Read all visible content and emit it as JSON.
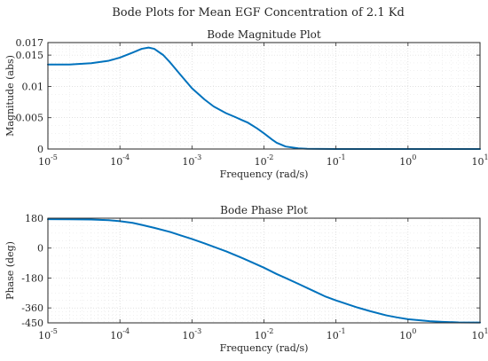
{
  "figure": {
    "suptitle": "Bode Plots for Mean EGF Concentration of 2.1 Kd"
  },
  "colors": {
    "line": "#0072bd",
    "text": "#262626"
  },
  "chart_data": [
    {
      "type": "line",
      "id": "magnitude",
      "title": "Bode Magnitude Plot",
      "xlabel": "Frequency (rad/s)",
      "ylabel": "Magnitude (abs)",
      "xscale": "log",
      "xlim": [
        1e-05,
        10
      ],
      "ylim": [
        0,
        0.017
      ],
      "grid": true,
      "xticks": [
        {
          "value": 1e-05,
          "base": "10",
          "exp": "-5"
        },
        {
          "value": 0.0001,
          "base": "10",
          "exp": "-4"
        },
        {
          "value": 0.001,
          "base": "10",
          "exp": "-3"
        },
        {
          "value": 0.01,
          "base": "10",
          "exp": "-2"
        },
        {
          "value": 0.1,
          "base": "10",
          "exp": "-1"
        },
        {
          "value": 1,
          "base": "10",
          "exp": "0"
        },
        {
          "value": 10,
          "base": "10",
          "exp": "1"
        }
      ],
      "yticks": [
        {
          "value": 0,
          "label": "0"
        },
        {
          "value": 0.005,
          "label": "0.005"
        },
        {
          "value": 0.01,
          "label": "0.01"
        },
        {
          "value": 0.015,
          "label": "0.015"
        },
        {
          "value": 0.017,
          "label": "0.017"
        }
      ],
      "series": [
        {
          "x": [
            1e-05,
            2e-05,
            4e-05,
            7e-05,
            0.0001,
            0.00015,
            0.0002,
            0.00025,
            0.0003,
            0.0004,
            0.0005,
            0.0007,
            0.001,
            0.0015,
            0.002,
            0.003,
            0.004,
            0.005,
            0.006,
            0.008,
            0.01,
            0.013,
            0.015,
            0.02,
            0.03,
            0.04,
            0.06,
            0.1,
            0.3,
            1,
            3,
            10
          ],
          "y": [
            0.0135,
            0.0135,
            0.0137,
            0.0141,
            0.0146,
            0.0154,
            0.016,
            0.0162,
            0.016,
            0.015,
            0.0138,
            0.0118,
            0.0097,
            0.0079,
            0.0068,
            0.0057,
            0.0051,
            0.0046,
            0.0042,
            0.0033,
            0.0025,
            0.0015,
            0.001,
            0.0004,
            0.0001,
            4e-05,
            1e-05,
            0,
            0,
            0,
            0,
            0
          ]
        }
      ]
    },
    {
      "type": "line",
      "id": "phase",
      "title": "Bode Phase Plot",
      "xlabel": "Frequency (rad/s)",
      "ylabel": "Phase (deg)",
      "xscale": "log",
      "xlim": [
        1e-05,
        10
      ],
      "ylim": [
        -450,
        180
      ],
      "grid": true,
      "xticks": [
        {
          "value": 1e-05,
          "base": "10",
          "exp": "-5"
        },
        {
          "value": 0.0001,
          "base": "10",
          "exp": "-4"
        },
        {
          "value": 0.001,
          "base": "10",
          "exp": "-3"
        },
        {
          "value": 0.01,
          "base": "10",
          "exp": "-2"
        },
        {
          "value": 0.1,
          "base": "10",
          "exp": "-1"
        },
        {
          "value": 1,
          "base": "10",
          "exp": "0"
        },
        {
          "value": 10,
          "base": "10",
          "exp": "1"
        }
      ],
      "yticks": [
        {
          "value": 180,
          "label": "180"
        },
        {
          "value": 0,
          "label": "0"
        },
        {
          "value": -180,
          "label": "-180"
        },
        {
          "value": -360,
          "label": "-360"
        },
        {
          "value": -450,
          "label": "-450"
        }
      ],
      "series": [
        {
          "x": [
            1e-05,
            2e-05,
            4e-05,
            7e-05,
            0.0001,
            0.00015,
            0.0002,
            0.0003,
            0.0005,
            0.0007,
            0.001,
            0.0015,
            0.002,
            0.003,
            0.005,
            0.007,
            0.01,
            0.015,
            0.02,
            0.03,
            0.05,
            0.07,
            0.1,
            0.15,
            0.2,
            0.3,
            0.5,
            0.7,
            1,
            2,
            3,
            5,
            10
          ],
          "y": [
            174,
            173,
            172,
            168,
            162,
            152,
            140,
            122,
            97,
            76,
            55,
            28,
            8,
            -20,
            -60,
            -88,
            -118,
            -156,
            -180,
            -215,
            -260,
            -290,
            -315,
            -340,
            -358,
            -380,
            -405,
            -417,
            -428,
            -440,
            -444,
            -447,
            -448
          ]
        }
      ]
    }
  ]
}
